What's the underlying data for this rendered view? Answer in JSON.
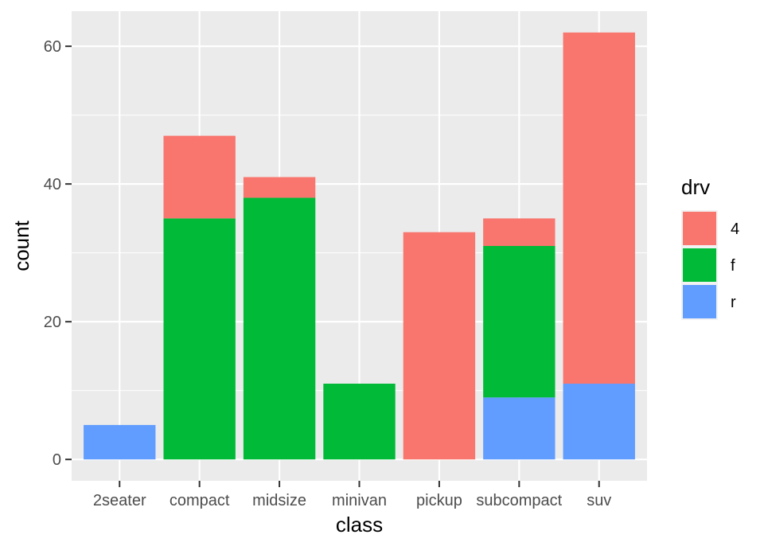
{
  "chart_data": {
    "type": "bar",
    "stacked": true,
    "categories": [
      "2seater",
      "compact",
      "midsize",
      "minivan",
      "pickup",
      "subcompact",
      "suv"
    ],
    "series": [
      {
        "name": "4",
        "color": "#F8766D",
        "values": [
          0,
          12,
          3,
          0,
          33,
          4,
          51
        ]
      },
      {
        "name": "f",
        "color": "#00BA38",
        "values": [
          0,
          35,
          38,
          11,
          0,
          22,
          0
        ]
      },
      {
        "name": "r",
        "color": "#619CFF",
        "values": [
          5,
          0,
          0,
          0,
          0,
          9,
          11
        ]
      }
    ],
    "xlabel": "class",
    "ylabel": "count",
    "ylim": [
      -3.1,
      65.1
    ],
    "yticks": [
      0,
      20,
      40,
      60
    ],
    "grid": true,
    "legend": {
      "title": "drv",
      "position": "right"
    },
    "colors": {
      "panel": "#EBEBEB",
      "grid": "#FFFFFF",
      "text": "#4D4D4D"
    }
  }
}
